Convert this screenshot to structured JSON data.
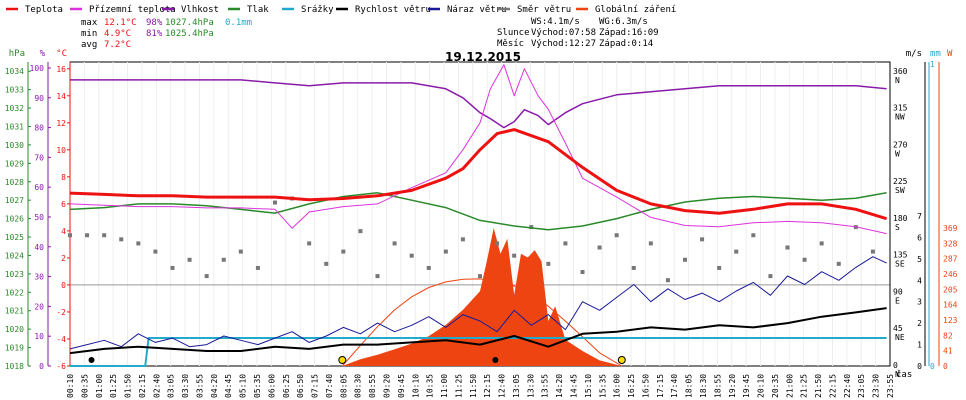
{
  "chart_data": {
    "type": "line",
    "title": "19.12.2015",
    "legend": [
      {
        "name": "Teplota",
        "color": "#ee1111"
      },
      {
        "name": "Přízemní teplota",
        "color": "#dd33dd"
      },
      {
        "name": "Vlhkost",
        "color": "#8a1aaa"
      },
      {
        "name": "Tlak",
        "color": "#2a8a2a"
      },
      {
        "name": "Srážky",
        "color": "#22aacc"
      },
      {
        "name": "Rychlost větru",
        "color": "#000000"
      },
      {
        "name": "Náraz větru",
        "color": "#1a1a99"
      },
      {
        "name": "Směr větru",
        "color": "#777777"
      },
      {
        "name": "Globální záření",
        "color": "#ee4411"
      }
    ],
    "stats": {
      "max": {
        "label": "max",
        "temp": "12.1°C",
        "hum": "98%",
        "press": "1027.4hPa",
        "rain": "0.1mm"
      },
      "min": {
        "label": "min",
        "temp": "4.9°C",
        "hum": "81%",
        "press": "1025.4hPa"
      },
      "avg": {
        "label": "avg",
        "temp": "7.2°C"
      }
    },
    "wind_info": {
      "ws": "WS:4.1m/s",
      "wg": "WG:6.3m/s"
    },
    "sun_info": {
      "label": "Slunce",
      "rise": "Východ:07:58",
      "set": "Západ:16:09"
    },
    "moon_info": {
      "label": "Měsíc",
      "rise": "Východ:12:27",
      "set": "Západ:0:14"
    },
    "axes": {
      "hpa": {
        "label": "hPa",
        "ticks": [
          "1034",
          "1033",
          "1032",
          "1031",
          "1030",
          "1029",
          "1028",
          "1027",
          "1026",
          "1025",
          "1024",
          "1023",
          "1022",
          "1021",
          "1020",
          "1019",
          "1018"
        ]
      },
      "pct": {
        "label": "%",
        "ticks": [
          "100",
          "90",
          "80",
          "70",
          "60",
          "50",
          "40",
          "30",
          "20",
          "10",
          "0"
        ]
      },
      "temp": {
        "label": "°C",
        "ticks": [
          "16",
          "14",
          "12",
          "10",
          "8",
          "6",
          "4",
          "2",
          "0",
          "-2",
          "-4",
          "-6"
        ]
      },
      "dir": {
        "label": "",
        "ticks": [
          "360",
          "315",
          "270",
          "225",
          "180",
          "135",
          "90",
          "45",
          "0"
        ],
        "names": [
          "N",
          "NW",
          "W",
          "SW",
          "S",
          "SE",
          "E",
          "NE",
          "N"
        ]
      },
      "ms": {
        "label": "m/s",
        "ticks": [
          "7",
          "6",
          "5",
          "4",
          "3",
          "2",
          "1",
          "0"
        ]
      },
      "mm": {
        "label": "mm",
        "ticks": [
          "1",
          "0"
        ]
      },
      "w": {
        "label": "W",
        "ticks": [
          "369",
          "328",
          "287",
          "246",
          "205",
          "164",
          "123",
          "82",
          "41",
          "0"
        ]
      },
      "time": {
        "label": "čas",
        "ticks": [
          "00:10",
          "00:35",
          "01:00",
          "01:25",
          "01:50",
          "02:15",
          "02:40",
          "03:05",
          "03:30",
          "03:55",
          "04:20",
          "04:45",
          "05:10",
          "05:35",
          "06:00",
          "06:25",
          "06:50",
          "07:15",
          "07:40",
          "08:05",
          "08:30",
          "08:55",
          "09:20",
          "09:45",
          "10:10",
          "10:35",
          "11:00",
          "11:25",
          "11:50",
          "12:15",
          "12:40",
          "13:05",
          "13:30",
          "13:55",
          "14:20",
          "14:45",
          "15:10",
          "15:35",
          "16:00",
          "16:25",
          "16:50",
          "17:15",
          "17:40",
          "18:05",
          "18:30",
          "18:55",
          "19:20",
          "19:45",
          "20:10",
          "20:35",
          "21:00",
          "21:25",
          "21:50",
          "22:15",
          "22:40",
          "23:05",
          "23:30",
          "23:55"
        ]
      }
    },
    "series": {
      "temperature_c": {
        "x_h": [
          0,
          1,
          2,
          3,
          4,
          5,
          6,
          7,
          8,
          9,
          10,
          11,
          11.5,
          12,
          12.5,
          13,
          14,
          15,
          16,
          17,
          18,
          19,
          20,
          21,
          22,
          23,
          23.9
        ],
        "y": [
          6.8,
          6.7,
          6.6,
          6.6,
          6.5,
          6.5,
          6.5,
          6.3,
          6.4,
          6.6,
          7.0,
          7.9,
          8.6,
          10.0,
          11.2,
          11.5,
          10.6,
          8.7,
          7.0,
          6.0,
          5.5,
          5.3,
          5.6,
          6.0,
          6.0,
          5.6,
          4.9
        ]
      },
      "ground_temp_c": {
        "x_h": [
          0,
          1,
          2,
          3,
          4,
          5,
          6,
          6.5,
          7,
          8,
          9,
          10,
          11,
          11.5,
          12,
          12.3,
          12.7,
          13,
          13.3,
          13.7,
          14,
          14.5,
          15,
          16,
          17,
          18,
          19,
          20,
          21,
          22,
          23,
          23.9
        ],
        "y": [
          6.0,
          5.9,
          5.8,
          5.8,
          5.7,
          5.7,
          5.6,
          4.2,
          5.4,
          5.8,
          6.0,
          7.2,
          8.3,
          10.0,
          12.0,
          14.5,
          16.3,
          14.0,
          16.0,
          14.0,
          13.0,
          10.5,
          7.9,
          6.5,
          5.0,
          4.4,
          4.3,
          4.6,
          4.7,
          4.6,
          4.3,
          3.8
        ]
      },
      "humidity_pct": {
        "x_h": [
          0,
          1,
          2,
          3,
          4,
          5,
          6,
          7,
          8,
          9,
          10,
          11,
          11.5,
          12,
          12.3,
          12.7,
          13,
          13.3,
          13.7,
          14,
          14.5,
          15,
          16,
          17,
          18,
          19,
          20,
          21,
          22,
          23,
          23.9
        ],
        "y": [
          96,
          96,
          96,
          96,
          96,
          96,
          95,
          94,
          95,
          95,
          95,
          93,
          90,
          85,
          83,
          80,
          82,
          86,
          84,
          81,
          85,
          88,
          91,
          92,
          93,
          94,
          94,
          94,
          94,
          94,
          93
        ]
      },
      "pressure_hpa": {
        "x_h": [
          0,
          1,
          2,
          3,
          4,
          5,
          6,
          7,
          8,
          9,
          10,
          11,
          12,
          13,
          14,
          15,
          16,
          17,
          18,
          19,
          20,
          21,
          22,
          23,
          23.9
        ],
        "y": [
          1026.5,
          1026.6,
          1026.8,
          1026.8,
          1026.7,
          1026.5,
          1026.3,
          1026.8,
          1027.2,
          1027.4,
          1027.0,
          1026.6,
          1025.9,
          1025.6,
          1025.4,
          1025.6,
          1026.0,
          1026.5,
          1026.9,
          1027.1,
          1027.2,
          1027.1,
          1027.0,
          1027.1,
          1027.4
        ]
      },
      "radiation_w": {
        "x_h": [
          7.97,
          8.5,
          9,
          9.5,
          10,
          10.5,
          11,
          11.5,
          12,
          12.2,
          12.4,
          12.6,
          12.8,
          13,
          13.2,
          13.4,
          13.6,
          13.8,
          14,
          14.2,
          14.5,
          15,
          15.5,
          16.15
        ],
        "y": [
          0,
          18,
          30,
          45,
          60,
          80,
          110,
          150,
          200,
          280,
          369,
          300,
          340,
          190,
          300,
          290,
          310,
          280,
          120,
          160,
          70,
          40,
          15,
          0
        ]
      },
      "radiation_clear_w": {
        "x_h": [
          7.97,
          8.5,
          9,
          9.5,
          10,
          10.5,
          11,
          11.5,
          12,
          12.5,
          13,
          13.5,
          14,
          14.5,
          15,
          15.5,
          16.15
        ],
        "y": [
          0,
          55,
          105,
          150,
          185,
          210,
          225,
          232,
          233,
          228,
          214,
          190,
          160,
          120,
          78,
          35,
          0
        ]
      },
      "wind_speed_ms": {
        "x_h": [
          0,
          1,
          2,
          3,
          4,
          5,
          6,
          7,
          8,
          9,
          10,
          11,
          12,
          13,
          14,
          15,
          16,
          17,
          18,
          19,
          20,
          21,
          22,
          23,
          23.9
        ],
        "y": [
          0.6,
          0.8,
          0.9,
          0.8,
          0.7,
          0.7,
          0.9,
          0.8,
          1.0,
          1.0,
          1.1,
          1.2,
          1.0,
          1.4,
          0.9,
          1.5,
          1.6,
          1.8,
          1.7,
          1.9,
          1.8,
          2.0,
          2.3,
          2.5,
          2.7
        ]
      },
      "wind_gust_ms": {
        "x_h": [
          0,
          0.5,
          1,
          1.5,
          2,
          2.5,
          3,
          3.5,
          4,
          4.5,
          5,
          5.5,
          6,
          6.5,
          7,
          7.5,
          8,
          8.5,
          9,
          9.5,
          10,
          10.5,
          11,
          11.5,
          12,
          12.5,
          13,
          13.5,
          14,
          14.5,
          15,
          15.5,
          16,
          16.5,
          17,
          17.5,
          18,
          18.5,
          19,
          19.5,
          20,
          20.5,
          21,
          21.5,
          22,
          22.5,
          23,
          23.5,
          23.9
        ],
        "y": [
          0.8,
          1.0,
          1.2,
          0.9,
          1.5,
          1.1,
          1.3,
          0.9,
          1.0,
          1.4,
          1.2,
          1.0,
          1.3,
          1.6,
          1.1,
          1.4,
          1.8,
          1.5,
          2.0,
          1.6,
          1.9,
          2.3,
          1.8,
          2.4,
          2.1,
          1.6,
          2.6,
          1.9,
          2.4,
          1.7,
          3.0,
          2.6,
          3.2,
          3.8,
          3.0,
          3.6,
          3.1,
          3.4,
          3.0,
          3.5,
          3.9,
          3.3,
          4.2,
          3.8,
          4.4,
          4.0,
          4.6,
          5.1,
          4.8
        ]
      },
      "wind_dir_deg": {
        "x_h": [
          0,
          0.5,
          1,
          1.5,
          2,
          2.5,
          3,
          3.5,
          4,
          4.5,
          5,
          5.5,
          6,
          6.5,
          7,
          7.5,
          8,
          8.5,
          9,
          9.5,
          10,
          10.5,
          11,
          11.5,
          12,
          12.5,
          13,
          13.5,
          14,
          14.5,
          15,
          15.5,
          16,
          16.5,
          17,
          17.5,
          18,
          18.5,
          19,
          19.5,
          20,
          20.5,
          21,
          21.5,
          22,
          22.5,
          23,
          23.5
        ],
        "y": [
          160,
          160,
          160,
          155,
          150,
          140,
          120,
          130,
          110,
          130,
          140,
          120,
          200,
          205,
          150,
          125,
          140,
          165,
          110,
          150,
          135,
          120,
          140,
          155,
          110,
          150,
          135,
          170,
          125,
          150,
          115,
          145,
          160,
          120,
          150,
          105,
          130,
          155,
          120,
          140,
          160,
          110,
          145,
          130,
          150,
          125,
          170,
          140
        ]
      },
      "rain_mm": {
        "x_h": [
          0,
          2.2,
          2.3,
          23.9
        ],
        "y": [
          0,
          0,
          0.1,
          0.1
        ]
      }
    },
    "xlim_h": [
      0,
      24
    ]
  }
}
